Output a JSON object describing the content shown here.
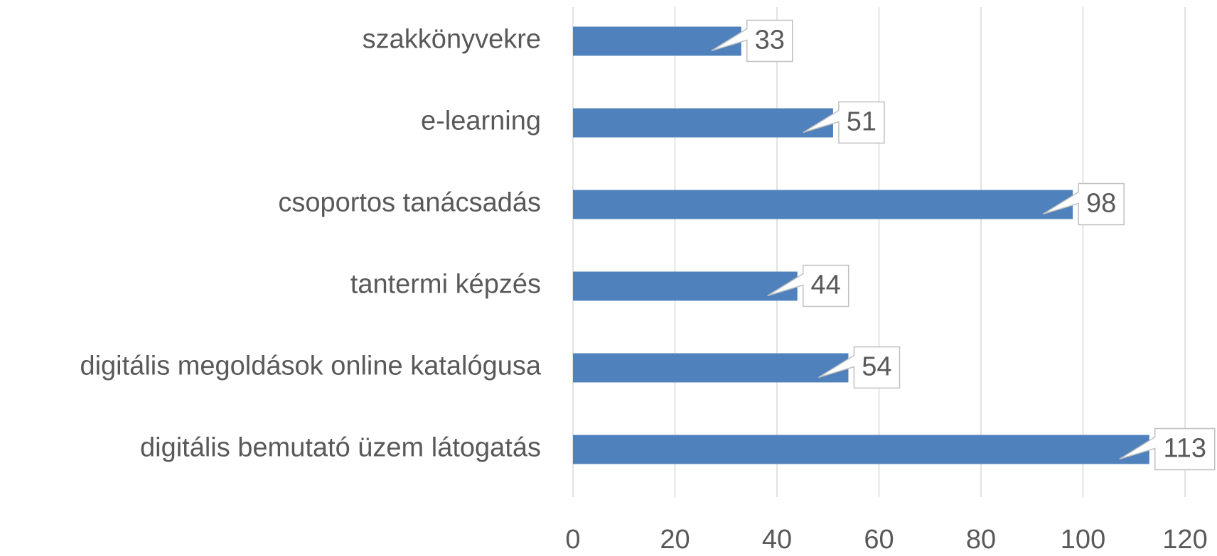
{
  "chart_data": {
    "type": "bar",
    "orientation": "horizontal",
    "categories": [
      "szakkönyvekre",
      "e-learning",
      "csoportos tanácsadás",
      "tantermi képzés",
      "digitális megoldások online katalógusa",
      "digitális bemutató üzem látogatás"
    ],
    "values": [
      33,
      51,
      98,
      44,
      54,
      113
    ],
    "color": "#4f81bd",
    "xlim": [
      0,
      120
    ],
    "xticks": [
      0,
      20,
      40,
      60,
      80,
      100,
      120
    ],
    "grid": true
  }
}
